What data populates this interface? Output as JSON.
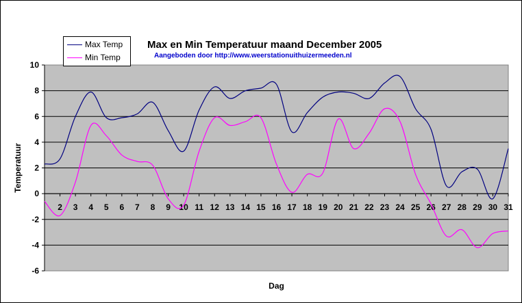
{
  "chart_data": {
    "type": "line",
    "title": "Max en Min Temperatuur maand December 2005",
    "subtitle": "Aangeboden door http://www.weerstationuithuizermeeden.nl",
    "xlabel": "Dag",
    "ylabel": "Temperatuur",
    "ylim": [
      -6,
      10
    ],
    "yticks": [
      -6,
      -4,
      -2,
      0,
      2,
      4,
      6,
      8,
      10
    ],
    "grid": true,
    "legend_position": "top-left",
    "x": [
      1,
      2,
      3,
      4,
      5,
      6,
      7,
      8,
      9,
      10,
      11,
      12,
      13,
      14,
      15,
      16,
      17,
      18,
      19,
      20,
      21,
      22,
      23,
      24,
      25,
      26,
      27,
      28,
      29,
      30,
      31
    ],
    "xtick_labels": [
      "2",
      "3",
      "4",
      "5",
      "6",
      "7",
      "8",
      "9",
      "10",
      "11",
      "12",
      "13",
      "14",
      "15",
      "16",
      "17",
      "18",
      "19",
      "20",
      "21",
      "22",
      "23",
      "24",
      "25",
      "26",
      "27",
      "28",
      "29",
      "30",
      "31"
    ],
    "series": [
      {
        "name": "Max Temp",
        "color": "#000080",
        "values": [
          2.3,
          2.7,
          6.0,
          7.9,
          5.9,
          5.9,
          6.2,
          7.1,
          4.9,
          3.3,
          6.5,
          8.3,
          7.4,
          8.0,
          8.2,
          8.5,
          4.8,
          6.3,
          7.5,
          7.9,
          7.8,
          7.4,
          8.6,
          9.1,
          6.6,
          5.0,
          0.6,
          1.7,
          1.9,
          -0.4,
          3.5
        ]
      },
      {
        "name": "Min Temp",
        "color": "#ff00ff",
        "values": [
          -0.6,
          -1.7,
          0.9,
          5.3,
          4.5,
          3.0,
          2.5,
          2.2,
          -0.4,
          -0.9,
          3.3,
          5.9,
          5.3,
          5.6,
          5.9,
          2.3,
          0.1,
          1.5,
          1.6,
          5.8,
          3.5,
          4.7,
          6.6,
          5.6,
          1.5,
          -0.8,
          -3.3,
          -2.8,
          -4.2,
          -3.1,
          -2.9
        ]
      }
    ]
  },
  "colors": {
    "plot_background": "#c0c0c0",
    "gridline": "#000000"
  }
}
